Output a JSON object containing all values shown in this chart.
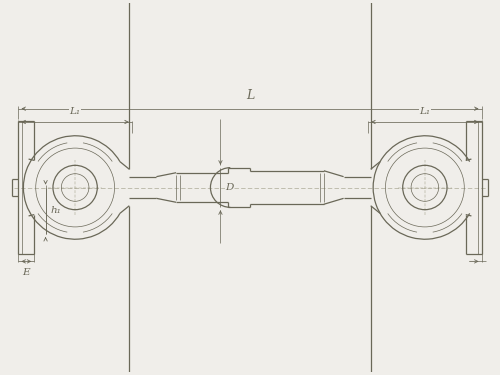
{
  "bg_color": "#f0eeea",
  "line_color": "#6a6858",
  "thin_lw": 0.5,
  "main_lw": 0.9,
  "figsize": [
    5.0,
    3.75
  ],
  "dpi": 100,
  "labels": {
    "L": "L",
    "L1": "L₁",
    "h1": "h₁",
    "D": "D",
    "E": "E"
  }
}
